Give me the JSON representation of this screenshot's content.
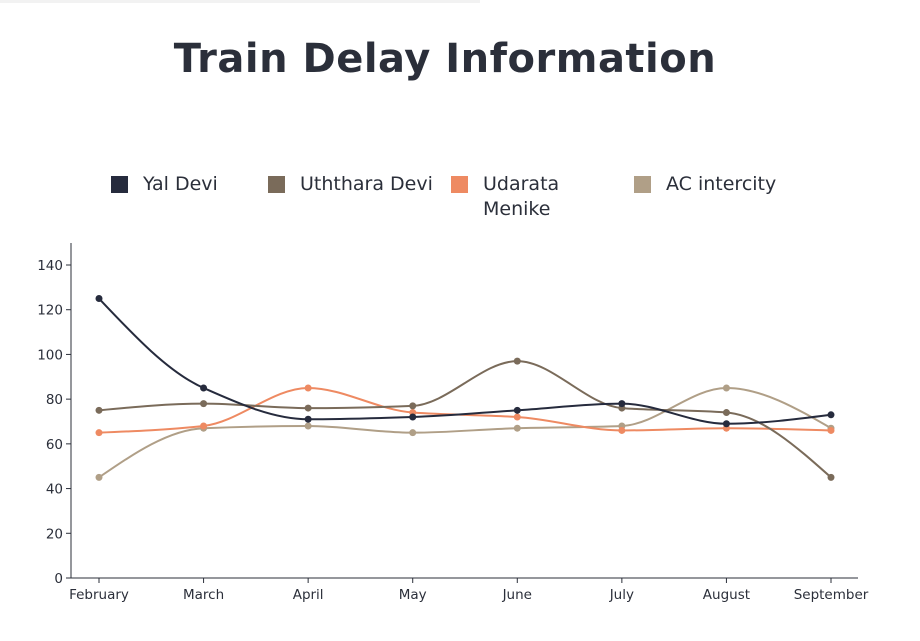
{
  "chart_data": {
    "type": "line",
    "title": "Train Delay Information",
    "categories": [
      "February",
      "March",
      "April",
      "May",
      "June",
      "July",
      "August",
      "September"
    ],
    "ylim": [
      0,
      140
    ],
    "yticks": [
      0,
      20,
      40,
      60,
      80,
      100,
      120,
      140
    ],
    "legend_position": "top",
    "grid": false,
    "series": [
      {
        "name": "Yal Devi",
        "color": "#262b3d",
        "values": [
          125,
          85,
          71,
          72,
          75,
          78,
          69,
          73
        ]
      },
      {
        "name": "Uththara Devi",
        "color": "#7a6b5a",
        "values": [
          75,
          78,
          76,
          77,
          97,
          76,
          74,
          45
        ]
      },
      {
        "name": "Udarata Menike",
        "color": "#ee8a62",
        "values": [
          65,
          68,
          85,
          74,
          72,
          66,
          67,
          66
        ]
      },
      {
        "name": "AC intercity",
        "color": "#b09f87",
        "values": [
          45,
          67,
          68,
          65,
          67,
          68,
          85,
          67
        ]
      }
    ]
  }
}
